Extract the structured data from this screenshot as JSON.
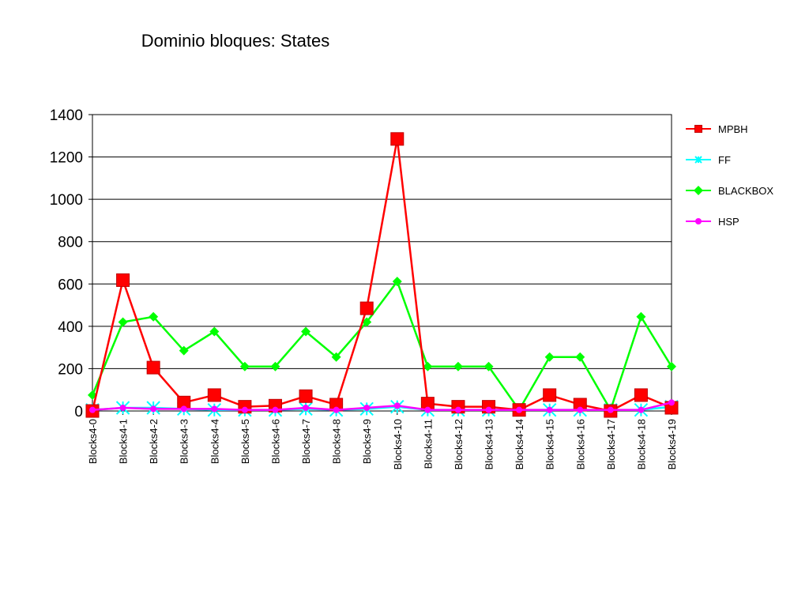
{
  "chart_data": {
    "type": "line",
    "title": "Dominio bloques: States",
    "xlabel": "",
    "ylabel": "",
    "ylim": [
      0,
      1400
    ],
    "yticks": [
      0,
      200,
      400,
      600,
      800,
      1000,
      1200,
      1400
    ],
    "grid": true,
    "legend_position": "right",
    "categories": [
      "Blocks4-0",
      "Blocks4-1",
      "Blocks4-2",
      "Blocks4-3",
      "Blocks4-4",
      "Blocks4-5",
      "Blocks4-6",
      "Blocks4-7",
      "Blocks4-8",
      "Blocks4-9",
      "Blocks4-10",
      "Blocks4-11",
      "Blocks4-12",
      "Blocks4-13",
      "Blocks4-14",
      "Blocks4-15",
      "Blocks4-16",
      "Blocks4-17",
      "Blocks4-18",
      "Blocks4-19"
    ],
    "series": [
      {
        "name": "MPBH",
        "color": "#ff0000",
        "marker": "square",
        "values": [
          0,
          618,
          205,
          40,
          75,
          20,
          25,
          70,
          30,
          485,
          1285,
          35,
          20,
          20,
          5,
          75,
          30,
          0,
          75,
          15
        ]
      },
      {
        "name": "FF",
        "color": "#00ffff",
        "marker": "star",
        "values": [
          5,
          15,
          15,
          10,
          5,
          5,
          5,
          10,
          5,
          10,
          20,
          5,
          5,
          5,
          5,
          5,
          5,
          5,
          5,
          20
        ]
      },
      {
        "name": "BLACKBOX",
        "color": "#00ff00",
        "marker": "diamond",
        "values": [
          75,
          420,
          445,
          285,
          375,
          210,
          210,
          375,
          255,
          420,
          612,
          210,
          210,
          210,
          5,
          255,
          255,
          5,
          445,
          210
        ]
      },
      {
        "name": "HSP",
        "color": "#ff00ff",
        "marker": "circle",
        "values": [
          5,
          15,
          10,
          10,
          10,
          5,
          5,
          15,
          5,
          15,
          25,
          5,
          5,
          5,
          5,
          5,
          5,
          5,
          5,
          40
        ]
      }
    ]
  }
}
